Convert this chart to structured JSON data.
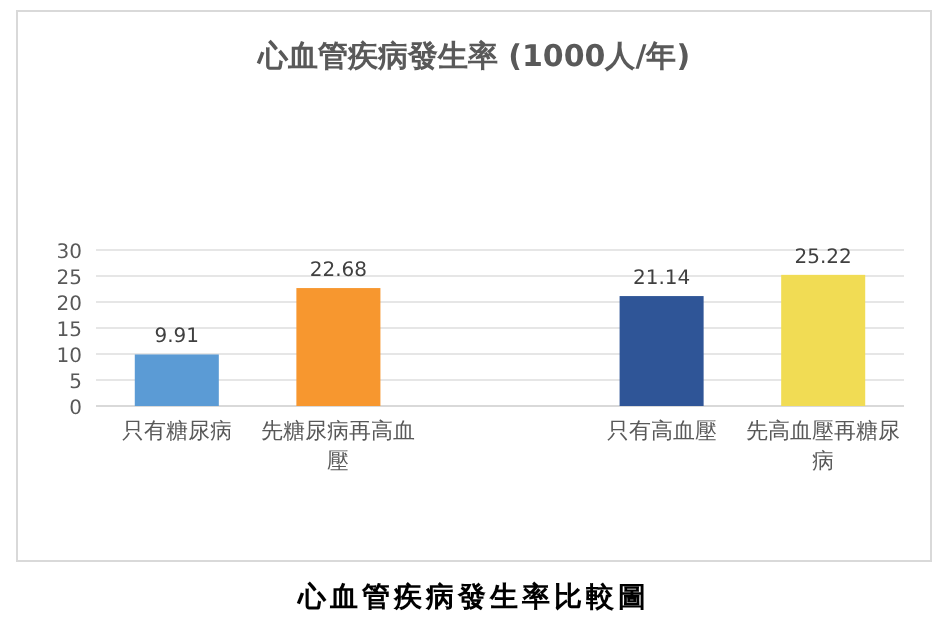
{
  "chart_data": {
    "type": "bar",
    "title": "心血管疾病發生率 (1000人/年)",
    "categories": [
      "只有糖尿病",
      "先糖尿病再高血壓",
      null,
      "只有高血壓",
      "先高血壓再糖尿病"
    ],
    "values": [
      9.91,
      22.68,
      null,
      21.14,
      25.22
    ],
    "colors": [
      "#5b9bd5",
      "#f7972f",
      null,
      "#2f5597",
      "#f1dc54"
    ],
    "ylim": [
      0,
      30
    ],
    "yticks": [
      0,
      5,
      10,
      15,
      20,
      25,
      30
    ],
    "grid": "y",
    "data_labels": true,
    "annotations": [
      "心血管疾病發生率比較圖"
    ]
  }
}
